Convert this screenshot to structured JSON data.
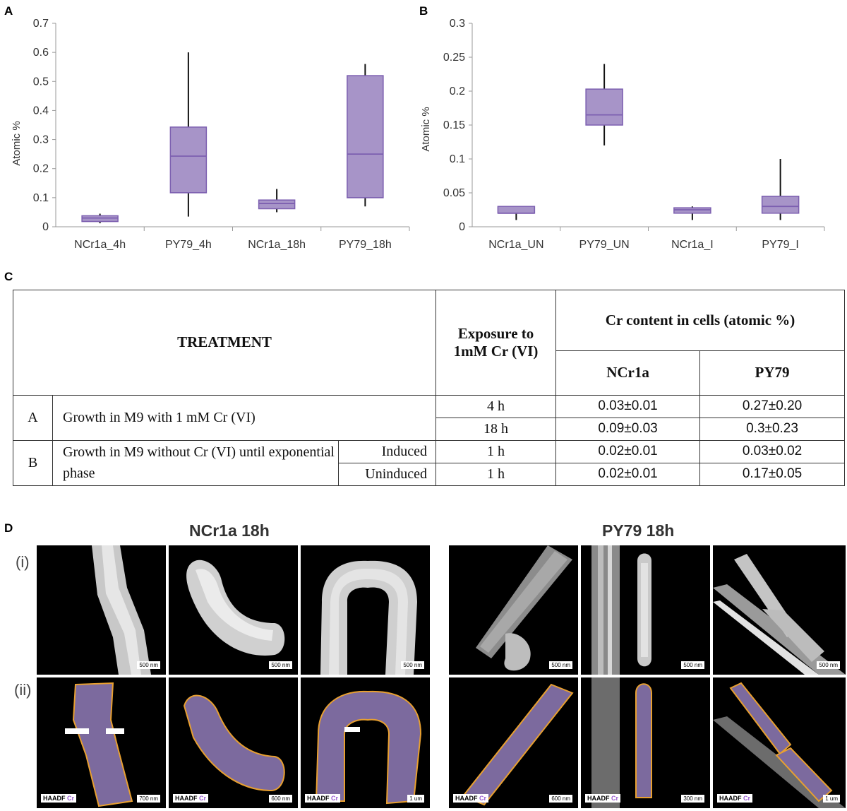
{
  "panels": {
    "a": "A",
    "b": "B",
    "c": "C",
    "d": "D"
  },
  "chart_data": [
    {
      "type": "boxplot",
      "ylabel": "Atomic %",
      "ylim": [
        0,
        0.7
      ],
      "yticks": [
        "0",
        "0.1",
        "0.2",
        "0.3",
        "0.4",
        "0.5",
        "0.6",
        "0.7"
      ],
      "ytick_values": [
        0,
        0.1,
        0.2,
        0.3,
        0.4,
        0.5,
        0.6,
        0.7
      ],
      "categories": [
        "NCr1a_4h",
        "PY79_4h",
        "NCr1a_18h",
        "PY79_18h"
      ],
      "boxes": [
        {
          "min": 0.012,
          "q1": 0.018,
          "median": 0.03,
          "q3": 0.038,
          "max": 0.045
        },
        {
          "min": 0.035,
          "q1": 0.117,
          "median": 0.243,
          "q3": 0.343,
          "max": 0.6
        },
        {
          "min": 0.05,
          "q1": 0.062,
          "median": 0.08,
          "q3": 0.092,
          "max": 0.13
        },
        {
          "min": 0.07,
          "q1": 0.1,
          "median": 0.25,
          "q3": 0.52,
          "max": 0.56
        }
      ],
      "box_color": "#a794c8",
      "box_edge": "#7c5fb0"
    },
    {
      "type": "boxplot",
      "ylabel": "Atomic %",
      "ylim": [
        0,
        0.3
      ],
      "yticks": [
        "0",
        "0.05",
        "0.1",
        "0.15",
        "0.2",
        "0.25",
        "0.3"
      ],
      "ytick_values": [
        0,
        0.05,
        0.1,
        0.15,
        0.2,
        0.25,
        0.3
      ],
      "categories": [
        "NCr1a_UN",
        "PY79_UN",
        "NCr1a_I",
        "PY79_I"
      ],
      "boxes": [
        {
          "min": 0.01,
          "q1": 0.02,
          "median": 0.02,
          "q3": 0.03,
          "max": 0.03
        },
        {
          "min": 0.12,
          "q1": 0.15,
          "median": 0.165,
          "q3": 0.203,
          "max": 0.24
        },
        {
          "min": 0.01,
          "q1": 0.02,
          "median": 0.025,
          "q3": 0.028,
          "max": 0.03
        },
        {
          "min": 0.01,
          "q1": 0.02,
          "median": 0.03,
          "q3": 0.045,
          "max": 0.1
        }
      ],
      "box_color": "#a794c8",
      "box_edge": "#7c5fb0"
    }
  ],
  "table": {
    "treatment_header": "TREATMENT",
    "exposure_header": "Exposure to 1mM Cr (VI)",
    "content_header": "Cr content in cells (atomic %)",
    "col_ncr1a": "NCr1a",
    "col_py79": "PY79",
    "row_a_label": "A",
    "row_a_text": "Growth in M9 with 1 mM Cr (VI)",
    "row_a1_exposure": "4 h",
    "row_a1_ncr1a": "0.03±0.01",
    "row_a1_py79": "0.27±0.20",
    "row_a2_exposure": "18 h",
    "row_a2_ncr1a": "0.09±0.03",
    "row_a2_py79": "0.3±0.23",
    "row_b_label": "B",
    "row_b_text": "Growth in M9 without Cr (VI) until exponential phase",
    "row_b1_condition": "Induced",
    "row_b1_exposure": "1 h",
    "row_b1_ncr1a": "0.02±0.01",
    "row_b1_py79": "0.03±0.02",
    "row_b2_condition": "Uninduced",
    "row_b2_exposure": "1 h",
    "row_b2_ncr1a": "0.02±0.01",
    "row_b2_py79": "0.17±0.05"
  },
  "microscopy": {
    "title_left": "NCr1a 18h",
    "title_right": "PY79 18h",
    "row_i": "(i)",
    "row_ii": "(ii)",
    "haadf": "HAADF",
    "cr": "Cr",
    "scale_top": [
      "500 nm",
      "500 nm",
      "500 nm",
      "500 nm",
      "500 nm",
      "500 nm"
    ],
    "scale_bottom": [
      "700 nm",
      "600 nm",
      "1 um",
      "600 nm",
      "300 nm",
      "1 um"
    ],
    "outline_color": "#e8a030",
    "cr_color": "#8a5bd6"
  }
}
